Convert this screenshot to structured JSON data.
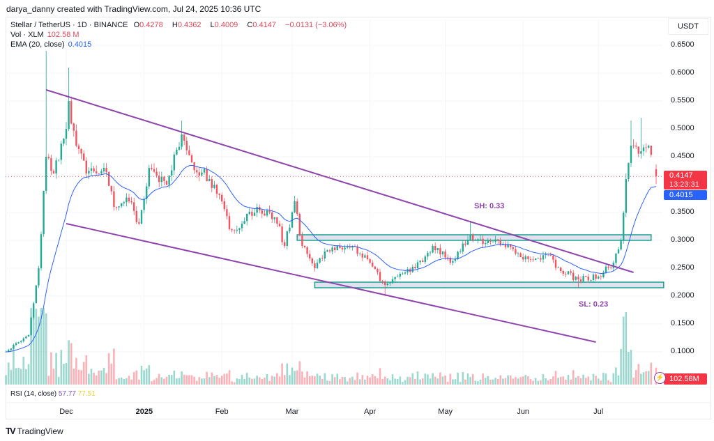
{
  "credit": "darya_danny created with TradingView.com, Jul 24, 2025 10:36 UTC",
  "legend": {
    "symbol": "Stellar / TetherUS · 1D · BINANCE",
    "o_label": "O",
    "o": "0.4278",
    "h_label": "H",
    "h": "0.4362",
    "l_label": "L",
    "l": "0.4009",
    "c_label": "C",
    "c": "0.4147",
    "change": "−0.0131 (−3.06%)",
    "vol_label": "Vol · XLM",
    "vol": "102.58 M",
    "ema_label": "EMA (20, close)",
    "ema": "0.4015"
  },
  "rsi": {
    "label": "RSI (14, close)",
    "value1": "57.77",
    "value2": "77.51"
  },
  "price_axis": {
    "currency": "USDT",
    "ticks": [
      "0.6500",
      "0.6000",
      "0.5500",
      "0.5000",
      "0.4500",
      "0.3500",
      "0.3000",
      "0.2500",
      "0.2000",
      "0.1500",
      "0.1000"
    ]
  },
  "time_axis": {
    "ticks": [
      "Dec",
      "2025",
      "Feb",
      "Mar",
      "Apr",
      "May",
      "Jun",
      "Jul"
    ],
    "bold": "2025"
  },
  "tags": {
    "last_price": "0.4147",
    "countdown": "13:23:31",
    "ema": "0.4015",
    "volume": "102.58M"
  },
  "annotations": {
    "sh": "SH: 0.33",
    "sl": "SL: 0.23"
  },
  "brand": "TradingView",
  "colors": {
    "up": "#22ab94",
    "down": "#f7525f",
    "ema": "#2962ff",
    "channel": "#8e44ad",
    "zone_fill": "#dfe3f0",
    "zone_border": "#1b9e8f",
    "annotation": "#8e44ad"
  },
  "chart_data": {
    "type": "candlestick",
    "symbol": "XLMUSDT",
    "interval": "1D",
    "ylim": [
      0.09,
      0.66
    ],
    "last_candle": {
      "date": "2025-07-24",
      "open": 0.4278,
      "high": 0.4362,
      "low": 0.4009,
      "close": 0.4147
    },
    "ema20_last": 0.4015,
    "close_path": [
      {
        "date": "2024-11-07",
        "close": 0.1
      },
      {
        "date": "2024-11-16",
        "close": 0.13
      },
      {
        "date": "2024-11-20",
        "close": 0.25
      },
      {
        "date": "2024-11-23",
        "close": 0.45,
        "high": 0.64
      },
      {
        "date": "2024-11-26",
        "close": 0.42
      },
      {
        "date": "2024-12-01",
        "close": 0.5
      },
      {
        "date": "2024-12-02",
        "close": 0.55,
        "high": 0.61
      },
      {
        "date": "2024-12-05",
        "close": 0.47
      },
      {
        "date": "2024-12-09",
        "close": 0.42
      },
      {
        "date": "2024-12-16",
        "close": 0.43
      },
      {
        "date": "2024-12-20",
        "close": 0.36
      },
      {
        "date": "2024-12-26",
        "close": 0.37
      },
      {
        "date": "2024-12-30",
        "close": 0.33
      },
      {
        "date": "2025-01-03",
        "close": 0.43
      },
      {
        "date": "2025-01-10",
        "close": 0.4
      },
      {
        "date": "2025-01-16",
        "close": 0.49,
        "high": 0.515
      },
      {
        "date": "2025-01-20",
        "close": 0.44
      },
      {
        "date": "2025-01-27",
        "close": 0.41
      },
      {
        "date": "2025-02-01",
        "close": 0.37
      },
      {
        "date": "2025-02-04",
        "close": 0.32
      },
      {
        "date": "2025-02-09",
        "close": 0.33
      },
      {
        "date": "2025-02-15",
        "close": 0.36
      },
      {
        "date": "2025-02-23",
        "close": 0.33
      },
      {
        "date": "2025-02-26",
        "close": 0.29
      },
      {
        "date": "2025-03-02",
        "close": 0.37,
        "high": 0.38
      },
      {
        "date": "2025-03-05",
        "close": 0.29
      },
      {
        "date": "2025-03-10",
        "close": 0.25
      },
      {
        "date": "2025-03-14",
        "close": 0.28
      },
      {
        "date": "2025-03-19",
        "close": 0.29
      },
      {
        "date": "2025-03-25",
        "close": 0.29
      },
      {
        "date": "2025-04-01",
        "close": 0.26
      },
      {
        "date": "2025-04-07",
        "close": 0.22,
        "low": 0.2
      },
      {
        "date": "2025-04-12",
        "close": 0.235
      },
      {
        "date": "2025-04-19",
        "close": 0.25
      },
      {
        "date": "2025-04-26",
        "close": 0.29
      },
      {
        "date": "2025-05-03",
        "close": 0.26
      },
      {
        "date": "2025-05-07",
        "close": 0.28
      },
      {
        "date": "2025-05-11",
        "close": 0.31,
        "high": 0.335
      },
      {
        "date": "2025-05-17",
        "close": 0.295
      },
      {
        "date": "2025-05-22",
        "close": 0.3
      },
      {
        "date": "2025-05-31",
        "close": 0.27
      },
      {
        "date": "2025-06-05",
        "close": 0.265
      },
      {
        "date": "2025-06-11",
        "close": 0.275
      },
      {
        "date": "2025-06-16",
        "close": 0.245
      },
      {
        "date": "2025-06-23",
        "close": 0.23,
        "low": 0.215
      },
      {
        "date": "2025-07-01",
        "close": 0.235
      },
      {
        "date": "2025-07-07",
        "close": 0.26
      },
      {
        "date": "2025-07-10",
        "close": 0.3
      },
      {
        "date": "2025-07-12",
        "close": 0.41
      },
      {
        "date": "2025-07-14",
        "close": 0.47,
        "high": 0.515
      },
      {
        "date": "2025-07-18",
        "close": 0.46,
        "high": 0.52
      },
      {
        "date": "2025-07-21",
        "close": 0.47
      },
      {
        "date": "2025-07-23",
        "close": 0.4278
      }
    ],
    "channel": {
      "upper": [
        {
          "date": "2024-11-23",
          "price": 0.57
        },
        {
          "date": "2025-07-15",
          "price": 0.2425
        }
      ],
      "lower": [
        {
          "date": "2024-12-01",
          "price": 0.33
        },
        {
          "date": "2025-06-30",
          "price": 0.1175
        }
      ]
    },
    "zones": [
      {
        "name": "resistance",
        "from": "2025-03-03",
        "to": "2025-07-22",
        "top": 0.31,
        "bottom": 0.3
      },
      {
        "name": "support",
        "from": "2025-03-10",
        "to": "2025-07-27",
        "top": 0.225,
        "bottom": 0.215
      }
    ],
    "annotation_points": [
      {
        "text_key": "sh",
        "date": "2025-05-17",
        "price": 0.335
      },
      {
        "text_key": "sl",
        "date": "2025-06-27",
        "price": 0.215
      }
    ]
  }
}
